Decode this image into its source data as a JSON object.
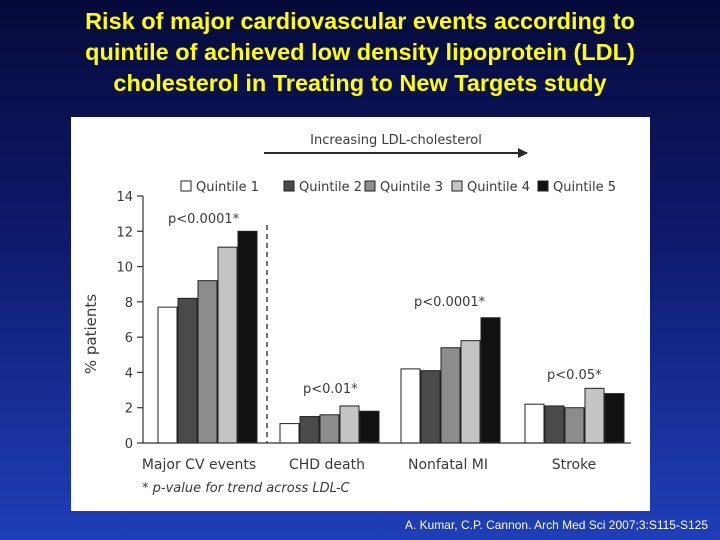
{
  "slide": {
    "title_lines": [
      "Risk of major cardiovascular events according to",
      "quintile of achieved low density lipoprotein (LDL)",
      "cholesterol in Treating to New Targets study"
    ],
    "citation": "A. Kumar, C.P. Cannon. Arch Med Sci 2007;3:S115-S125"
  },
  "chart_data": {
    "type": "bar",
    "arrow_label": "Increasing LDL-cholesterol",
    "ylabel": "% patients",
    "ylim": [
      0,
      14
    ],
    "yticks": [
      0,
      2,
      4,
      6,
      8,
      10,
      12,
      14
    ],
    "categories": [
      "Major CV events",
      "CHD death",
      "Nonfatal MI",
      "Stroke"
    ],
    "annotations": [
      "p<0.0001*",
      "p<0.01*",
      "p<0.0001*",
      "p<0.05*"
    ],
    "footnote": "* p-value for trend across LDL-C",
    "legend_position": "top",
    "grid": false,
    "series": [
      {
        "name": "Quintile 1",
        "color": "#ffffff",
        "values": [
          7.7,
          1.1,
          4.2,
          2.2
        ]
      },
      {
        "name": "Quintile 2",
        "color": "#4a4a4a",
        "values": [
          8.2,
          1.5,
          4.1,
          2.1
        ]
      },
      {
        "name": "Quintile 3",
        "color": "#8c8c8c",
        "values": [
          9.2,
          1.6,
          5.4,
          2.0
        ]
      },
      {
        "name": "Quintile 4",
        "color": "#c4c4c4",
        "values": [
          11.1,
          2.1,
          5.8,
          3.1
        ]
      },
      {
        "name": "Quintile 5",
        "color": "#111111",
        "values": [
          12.0,
          1.8,
          7.1,
          2.8
        ]
      }
    ]
  }
}
